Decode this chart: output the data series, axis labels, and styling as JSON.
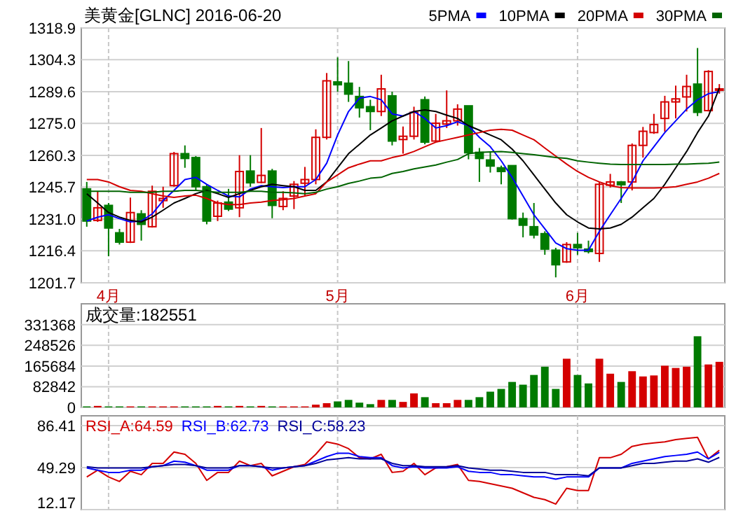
{
  "chart_data": [
    {
      "type": "candlestick",
      "title": "美黄金[GLNC] 2016-06-20",
      "legend": "top right",
      "grid": true,
      "categories": [
        null,
        null,
        "4月",
        null,
        null,
        null,
        null,
        null,
        null,
        null,
        null,
        null,
        null,
        null,
        null,
        null,
        null,
        null,
        null,
        null,
        null,
        null,
        null,
        "5月",
        null,
        null,
        null,
        null,
        null,
        null,
        null,
        null,
        null,
        null,
        null,
        null,
        null,
        null,
        null,
        null,
        null,
        null,
        null,
        null,
        null,
        "6月",
        null,
        null,
        null,
        null,
        null,
        null,
        null,
        null,
        null,
        null,
        null,
        null,
        null
      ],
      "ylim": [
        1201.7,
        1318.9
      ],
      "yticks": [
        1201.7,
        1216.4,
        {
          "value": 1231,
          "label": "1231.0"
        },
        1245.7,
        1260.3,
        {
          "value": 1275,
          "label": "1275.0"
        },
        1289.6,
        1304.3,
        1318.9
      ],
      "ohlc": [
        [
          1244.9,
          1248.1,
          1227.5,
          1230.1
        ],
        [
          1230.4,
          1243.8,
          1229.7,
          1236.2
        ],
        [
          1237.3,
          1238.4,
          1213.9,
          1226.9
        ],
        [
          1224.7,
          1226.5,
          1219.3,
          1220.4
        ],
        [
          1220.4,
          1240.9,
          1220.0,
          1234.0
        ],
        [
          1233.4,
          1235.1,
          1221.1,
          1228.6
        ],
        [
          1227.5,
          1246.4,
          1227.1,
          1243.8
        ],
        [
          1239.5,
          1245.9,
          1236.2,
          1240.5
        ],
        [
          1246.4,
          1261.9,
          1245.9,
          1261.1
        ],
        [
          1261.1,
          1264.9,
          1254.6,
          1258.9
        ],
        [
          1259.3,
          1260.0,
          1244.2,
          1245.9
        ],
        [
          1245.9,
          1247.0,
          1228.6,
          1230.1
        ],
        [
          1232.3,
          1239.5,
          1230.1,
          1238.4
        ],
        [
          1238.8,
          1244.9,
          1234.7,
          1235.6
        ],
        [
          1236.2,
          1260.4,
          1231.9,
          1252.9
        ],
        [
          1253.1,
          1260.4,
          1245.9,
          1247.7
        ],
        [
          1247.9,
          1272.9,
          1247.5,
          1251.1
        ],
        [
          1253.1,
          1254.1,
          1231.4,
          1237.3
        ],
        [
          1236.8,
          1243.8,
          1235.1,
          1240.5
        ],
        [
          1241.6,
          1248.5,
          1235.6,
          1247.0
        ],
        [
          1247.5,
          1255.0,
          1241.6,
          1249.2
        ],
        [
          1249.2,
          1272.3,
          1247.0,
          1268.6
        ],
        [
          1268.6,
          1298.2,
          1267.6,
          1294.6
        ],
        [
          1294.1,
          1305.4,
          1289.6,
          1292.8
        ],
        [
          1293.5,
          1303.7,
          1284.9,
          1288.5
        ],
        [
          1287.4,
          1291.8,
          1277.7,
          1282.2
        ],
        [
          1282.7,
          1285.9,
          1271.9,
          1280.5
        ],
        [
          1280.5,
          1297.4,
          1278.4,
          1290.9
        ],
        [
          1287.7,
          1289.6,
          1264.9,
          1266.9
        ],
        [
          1267.6,
          1273.6,
          1261.1,
          1269.1
        ],
        [
          1269.1,
          1282.7,
          1267.6,
          1280.1
        ],
        [
          1285.9,
          1287.4,
          1265.4,
          1266.4
        ],
        [
          1266.9,
          1279.4,
          1266.4,
          1275.1
        ],
        [
          1274.7,
          1290.2,
          1272.9,
          1276.2
        ],
        [
          1276.2,
          1283.8,
          1274.0,
          1281.6
        ],
        [
          1283.1,
          1283.1,
          1258.5,
          1261.5
        ],
        [
          1261.7,
          1263.7,
          1248.1,
          1258.9
        ],
        [
          1258.2,
          1262.2,
          1252.4,
          1255.4
        ],
        [
          1254.6,
          1255.6,
          1247.0,
          1252.9
        ],
        [
          1255.6,
          1255.6,
          1230.8,
          1231.2
        ],
        [
          1231.2,
          1234.0,
          1222.6,
          1228.2
        ],
        [
          1227.5,
          1238.4,
          1222.1,
          1223.7
        ],
        [
          1224.3,
          1225.4,
          1214.6,
          1217.2
        ],
        [
          1216.7,
          1217.8,
          1204.2,
          1210.0
        ],
        [
          1211.3,
          1220.4,
          1210.9,
          1219.3
        ],
        [
          1219.3,
          1224.7,
          1214.6,
          1217.8
        ],
        [
          1217.2,
          1221.1,
          1215.2,
          1216.1
        ],
        [
          1215.2,
          1248.1,
          1211.3,
          1247.0
        ],
        [
          1246.6,
          1251.8,
          1245.5,
          1248.1
        ],
        [
          1248.1,
          1248.5,
          1238.4,
          1246.8
        ],
        [
          1248.1,
          1265.8,
          1244.2,
          1264.9
        ],
        [
          1264.9,
          1273.4,
          1259.3,
          1271.4
        ],
        [
          1270.8,
          1279.4,
          1270.2,
          1274.5
        ],
        [
          1277.3,
          1287.7,
          1271.2,
          1284.9
        ],
        [
          1284.9,
          1292.4,
          1277.3,
          1286.3
        ],
        [
          1287.2,
          1297.4,
          1280.5,
          1292.0
        ],
        [
          1293.1,
          1309.7,
          1278.4,
          1280.1
        ],
        [
          1280.9,
          1299.5,
          1280.5,
          1298.9
        ],
        [
          1290.5,
          1293.1,
          1288.7,
          1290.9
        ]
      ],
      "colors": [
        "#007a00",
        "#d40000",
        "#007a00",
        "#007a00",
        "#d40000",
        "#007a00",
        "#d40000",
        "#d40000",
        "#d40000",
        "#007a00",
        "#007a00",
        "#007a00",
        "#d40000",
        "#007a00",
        "#d40000",
        "#007a00",
        "#d40000",
        "#007a00",
        "#d40000",
        "#d40000",
        "#d40000",
        "#d40000",
        "#d40000",
        "#007a00",
        "#007a00",
        "#007a00",
        "#007a00",
        "#d40000",
        "#007a00",
        "#d40000",
        "#d40000",
        "#007a00",
        "#d40000",
        "#d40000",
        "#d40000",
        "#007a00",
        "#007a00",
        "#007a00",
        "#007a00",
        "#007a00",
        "#007a00",
        "#007a00",
        "#007a00",
        "#007a00",
        "#d40000",
        "#007a00",
        "#007a00",
        "#d40000",
        "#d40000",
        "#007a00",
        "#d40000",
        "#d40000",
        "#d40000",
        "#d40000",
        "#d40000",
        "#d40000",
        "#007a00",
        "#d40000",
        "#d40000"
      ],
      "series": [
        {
          "name": "5PMA",
          "type": "line",
          "color": "#0000ff",
          "values": [
            1230.1,
            1231.9,
            1233.0,
            1231.2,
            1229.7,
            1230.1,
            1233.4,
            1239.5,
            1244.2,
            1249.2,
            1250.2,
            1247.0,
            1244.2,
            1241.6,
            1241.2,
            1244.8,
            1246.4,
            1245.9,
            1245.5,
            1245.9,
            1245.9,
            1249.2,
            1256.7,
            1269.7,
            1280.5,
            1286.6,
            1287.4,
            1285.9,
            1279.4,
            1278.4,
            1280.5,
            1277.3,
            1272.9,
            1274.0,
            1275.8,
            1274.0,
            1268.6,
            1264.3,
            1257.8,
            1250.2,
            1241.6,
            1233.0,
            1226.5,
            1220.0,
            1217.4,
            1216.7,
            1216.7,
            1225.4,
            1233.0,
            1240.5,
            1248.1,
            1257.8,
            1264.3,
            1270.8,
            1276.2,
            1281.6,
            1285.9,
            1288.7,
            1289.6
          ]
        },
        {
          "name": "10PMA",
          "type": "line",
          "color": "#000000",
          "values": [
            1242.7,
            1238.4,
            1234.0,
            1231.9,
            1230.4,
            1229.7,
            1231.9,
            1235.1,
            1238.4,
            1240.5,
            1242.7,
            1244.2,
            1242.7,
            1241.0,
            1242.7,
            1244.2,
            1245.9,
            1247.0,
            1246.4,
            1245.9,
            1244.2,
            1244.2,
            1248.1,
            1254.6,
            1261.1,
            1265.4,
            1269.7,
            1272.9,
            1276.2,
            1278.4,
            1280.5,
            1281.2,
            1280.5,
            1278.8,
            1277.3,
            1274.0,
            1271.9,
            1269.7,
            1267.5,
            1263.2,
            1257.8,
            1251.3,
            1244.8,
            1238.4,
            1233.0,
            1229.7,
            1226.9,
            1226.5,
            1226.9,
            1228.6,
            1231.9,
            1236.2,
            1240.5,
            1247.0,
            1254.6,
            1262.1,
            1270.8,
            1278.4,
            1291.3
          ]
        },
        {
          "name": "20PMA",
          "type": "line",
          "color": "#d40000",
          "values": [
            1249.2,
            1249.2,
            1248.1,
            1245.9,
            1244.2,
            1243.8,
            1242.7,
            1241.6,
            1241.0,
            1241.6,
            1242.0,
            1240.5,
            1238.4,
            1237.7,
            1237.7,
            1238.4,
            1238.8,
            1239.5,
            1239.9,
            1240.5,
            1241.6,
            1242.7,
            1248.1,
            1251.3,
            1254.6,
            1256.3,
            1257.8,
            1257.8,
            1259.3,
            1260.4,
            1262.1,
            1264.3,
            1266.4,
            1267.5,
            1268.6,
            1269.7,
            1270.8,
            1271.9,
            1272.3,
            1271.9,
            1269.7,
            1267.5,
            1263.7,
            1260.0,
            1256.3,
            1252.9,
            1250.2,
            1248.1,
            1246.4,
            1245.5,
            1245.3,
            1245.3,
            1245.3,
            1245.5,
            1245.9,
            1247.0,
            1248.1,
            1249.8,
            1252.0
          ]
        },
        {
          "name": "30PMA",
          "type": "line",
          "color": "#006400",
          "values": [
            1243.8,
            1243.8,
            1243.8,
            1243.8,
            1243.3,
            1243.3,
            1243.3,
            1243.8,
            1243.8,
            1244.2,
            1244.2,
            1243.8,
            1243.3,
            1243.3,
            1243.3,
            1243.8,
            1243.8,
            1243.3,
            1243.3,
            1243.1,
            1242.7,
            1243.3,
            1244.8,
            1245.9,
            1247.4,
            1248.5,
            1249.8,
            1250.2,
            1252.0,
            1252.9,
            1254.1,
            1255.0,
            1255.9,
            1257.2,
            1258.4,
            1261.1,
            1261.7,
            1261.9,
            1262.1,
            1261.7,
            1261.1,
            1260.6,
            1260.0,
            1259.3,
            1258.9,
            1257.8,
            1257.2,
            1256.7,
            1256.3,
            1256.1,
            1256.1,
            1256.1,
            1256.1,
            1256.1,
            1256.3,
            1256.3,
            1256.5,
            1256.7,
            1257.2
          ]
        }
      ]
    },
    {
      "type": "bar",
      "title": "成交量:182551",
      "grid": true,
      "tick_labels": "y",
      "categories": [
        null,
        null,
        null,
        null,
        null,
        null,
        null,
        null,
        null,
        null,
        null,
        null,
        null,
        null,
        null,
        null,
        null,
        null,
        null,
        null,
        null,
        null,
        null,
        null,
        null,
        null,
        null,
        null,
        null,
        null,
        null,
        null,
        null,
        null,
        null,
        null,
        null,
        null,
        null,
        null,
        null,
        null,
        null,
        null,
        null,
        null,
        null,
        null,
        null,
        null,
        null,
        null,
        null,
        null,
        null,
        null,
        null,
        null,
        null
      ],
      "ylim": [
        0,
        415000
      ],
      "yticks": [
        0,
        82842,
        165684,
        248526,
        331368
      ],
      "values": [
        4000,
        6000,
        4000,
        4000,
        4000,
        4000,
        4000,
        4000,
        4000,
        4000,
        4000,
        4000,
        6000,
        4000,
        6000,
        4000,
        6000,
        4000,
        4000,
        4000,
        4000,
        11000,
        17000,
        24000,
        30000,
        19000,
        13000,
        30000,
        30000,
        22000,
        56000,
        41000,
        17000,
        17000,
        30000,
        30000,
        41000,
        63000,
        74000,
        102000,
        91000,
        130000,
        163000,
        74000,
        195000,
        130000,
        96000,
        195000,
        135000,
        102000,
        145000,
        124000,
        128000,
        167000,
        158000,
        163000,
        285000,
        172000,
        182551
      ],
      "colors": [
        "#007a00",
        "#d40000",
        "#007a00",
        "#007a00",
        "#d40000",
        "#007a00",
        "#d40000",
        "#d40000",
        "#d40000",
        "#007a00",
        "#007a00",
        "#007a00",
        "#d40000",
        "#007a00",
        "#d40000",
        "#007a00",
        "#d40000",
        "#007a00",
        "#d40000",
        "#d40000",
        "#d40000",
        "#d40000",
        "#d40000",
        "#007a00",
        "#007a00",
        "#007a00",
        "#007a00",
        "#d40000",
        "#007a00",
        "#d40000",
        "#d40000",
        "#007a00",
        "#d40000",
        "#d40000",
        "#d40000",
        "#007a00",
        "#007a00",
        "#007a00",
        "#007a00",
        "#007a00",
        "#007a00",
        "#007a00",
        "#007a00",
        "#007a00",
        "#d40000",
        "#007a00",
        "#007a00",
        "#d40000",
        "#d40000",
        "#007a00",
        "#d40000",
        "#d40000",
        "#d40000",
        "#d40000",
        "#d40000",
        "#d40000",
        "#007a00",
        "#d40000",
        "#d40000"
      ]
    },
    {
      "type": "line",
      "legend": "top left",
      "grid": true,
      "tick_labels": "y",
      "categories": [
        null,
        null,
        null,
        null,
        null,
        null,
        null,
        null,
        null,
        null,
        null,
        null,
        null,
        null,
        null,
        null,
        null,
        null,
        null,
        null,
        null,
        null,
        null,
        null,
        null,
        null,
        null,
        null,
        null,
        null,
        null,
        null,
        null,
        null,
        null,
        null,
        null,
        null,
        null,
        null,
        null,
        null,
        null,
        null,
        null,
        null,
        null,
        null,
        null,
        null,
        null,
        null,
        null,
        null,
        null,
        null,
        null,
        null,
        null
      ],
      "ylim": [
        12.17,
        95
      ],
      "yticks": [
        12.17,
        49.29,
        86.41
      ],
      "series": [
        {
          "name": "RSI_A:64.59",
          "color": "#d40000",
          "values": [
            41,
            47,
            41,
            37,
            46,
            43,
            53,
            53,
            63,
            61,
            53,
            38,
            45,
            45,
            55,
            51,
            53,
            42,
            46,
            50,
            52,
            61,
            72,
            70,
            66,
            58,
            57,
            61,
            45,
            46,
            53,
            43,
            49,
            50,
            52,
            38,
            37,
            35,
            33,
            31,
            27,
            23,
            21,
            17,
            31,
            29,
            29,
            58,
            58,
            61,
            68,
            70,
            71,
            72,
            74,
            75,
            76,
            57,
            64.59
          ]
        },
        {
          "name": "RSI_B:62.73",
          "color": "#0000ff",
          "values": [
            49,
            47,
            45,
            45,
            47,
            47,
            50,
            51,
            55,
            54,
            51,
            47,
            47,
            47,
            51,
            51,
            50,
            47,
            49,
            50,
            51,
            55,
            59,
            62,
            62,
            59,
            58,
            58,
            51,
            49,
            50,
            49,
            49,
            49,
            50,
            46,
            45,
            45,
            43,
            43,
            42,
            41,
            41,
            39,
            41,
            41,
            41,
            49,
            49,
            49,
            53,
            55,
            57,
            59,
            60,
            61,
            63,
            57,
            62.73
          ]
        },
        {
          "name": "RSI_C:58.23",
          "color": "#000099",
          "values": [
            50,
            49,
            49,
            49,
            49,
            49,
            50,
            51,
            52,
            52,
            51,
            49,
            49,
            49,
            51,
            51,
            50,
            49,
            49,
            50,
            51,
            53,
            56,
            57,
            58,
            57,
            57,
            57,
            53,
            51,
            51,
            50,
            50,
            50,
            51,
            49,
            48,
            47,
            47,
            46,
            45,
            45,
            45,
            43,
            43,
            43,
            42,
            49,
            49,
            49,
            51,
            53,
            53,
            54,
            55,
            55,
            57,
            54,
            58.23
          ]
        }
      ]
    }
  ]
}
